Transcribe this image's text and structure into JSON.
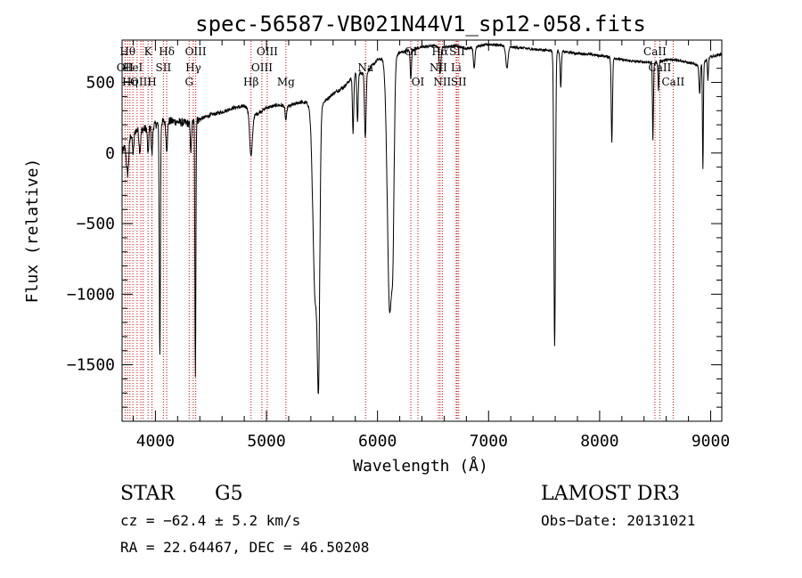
{
  "chart_data": {
    "type": "line",
    "title": "spec-56587-VB021N44V1_sp12-058.fits",
    "xlabel": "Wavelength (Å)",
    "ylabel": "Flux (relative)",
    "xlim": [
      3700,
      9100
    ],
    "ylim": [
      -1900,
      800
    ],
    "xticks": [
      4000,
      5000,
      6000,
      7000,
      8000,
      9000
    ],
    "yticks": [
      -1500,
      -1000,
      -500,
      0,
      500
    ],
    "grid": false,
    "line_color": "#000000",
    "marker_color": "#cc0000",
    "spectrum": {
      "continuum": [
        [
          3700,
          0
        ],
        [
          3760,
          120
        ],
        [
          3820,
          160
        ],
        [
          3900,
          170
        ],
        [
          4000,
          200
        ],
        [
          4100,
          230
        ],
        [
          4200,
          220
        ],
        [
          4300,
          210
        ],
        [
          4400,
          240
        ],
        [
          4500,
          270
        ],
        [
          4600,
          290
        ],
        [
          4700,
          320
        ],
        [
          4800,
          330
        ],
        [
          4850,
          320
        ],
        [
          4900,
          270
        ],
        [
          5000,
          320
        ],
        [
          5100,
          340
        ],
        [
          5200,
          330
        ],
        [
          5300,
          360
        ],
        [
          5400,
          350
        ],
        [
          5500,
          350
        ],
        [
          5600,
          420
        ],
        [
          5700,
          470
        ],
        [
          5800,
          560
        ],
        [
          5900,
          570
        ],
        [
          6000,
          660
        ],
        [
          6100,
          680
        ],
        [
          6200,
          710
        ],
        [
          6300,
          730
        ],
        [
          6400,
          750
        ],
        [
          6500,
          760
        ],
        [
          6600,
          750
        ],
        [
          6700,
          760
        ],
        [
          6800,
          740
        ],
        [
          6900,
          755
        ],
        [
          7000,
          770
        ],
        [
          7100,
          765
        ],
        [
          7200,
          750
        ],
        [
          7300,
          745
        ],
        [
          7400,
          735
        ],
        [
          7500,
          730
        ],
        [
          7600,
          725
        ],
        [
          7700,
          715
        ],
        [
          7800,
          705
        ],
        [
          7900,
          700
        ],
        [
          8000,
          690
        ],
        [
          8100,
          680
        ],
        [
          8200,
          660
        ],
        [
          8300,
          650
        ],
        [
          8400,
          645
        ],
        [
          8500,
          640
        ],
        [
          8600,
          660
        ],
        [
          8700,
          660
        ],
        [
          8800,
          640
        ],
        [
          8900,
          620
        ],
        [
          9000,
          680
        ],
        [
          9100,
          700
        ]
      ],
      "absorptions": [
        {
          "center": 3750,
          "width": 15,
          "depth": 250
        },
        {
          "center": 3800,
          "width": 10,
          "depth": 150
        },
        {
          "center": 3860,
          "width": 10,
          "depth": 150
        },
        {
          "center": 3934,
          "width": 8,
          "depth": 200
        },
        {
          "center": 3969,
          "width": 8,
          "depth": 200
        },
        {
          "center": 4040,
          "width": 7,
          "depth": 1650
        },
        {
          "center": 4102,
          "width": 10,
          "depth": 200
        },
        {
          "center": 4320,
          "width": 8,
          "depth": 200
        },
        {
          "center": 4360,
          "width": 6,
          "depth": 1800
        },
        {
          "center": 4861,
          "width": 18,
          "depth": 330
        },
        {
          "center": 5175,
          "width": 10,
          "depth": 100
        },
        {
          "center": 5440,
          "width": 30,
          "depth": 1400
        },
        {
          "center": 5470,
          "width": 15,
          "depth": 1500
        },
        {
          "center": 5780,
          "width": 8,
          "depth": 400
        },
        {
          "center": 5820,
          "width": 8,
          "depth": 350
        },
        {
          "center": 5890,
          "width": 10,
          "depth": 450
        },
        {
          "center": 6110,
          "width": 30,
          "depth": 1800
        },
        {
          "center": 6140,
          "width": 15,
          "depth": 800
        },
        {
          "center": 6300,
          "width": 8,
          "depth": 200
        },
        {
          "center": 6563,
          "width": 10,
          "depth": 200
        },
        {
          "center": 6870,
          "width": 10,
          "depth": 150
        },
        {
          "center": 7165,
          "width": 15,
          "depth": 150
        },
        {
          "center": 7595,
          "width": 10,
          "depth": 2100
        },
        {
          "center": 7650,
          "width": 8,
          "depth": 250
        },
        {
          "center": 8110,
          "width": 8,
          "depth": 600
        },
        {
          "center": 8480,
          "width": 6,
          "depth": 550
        },
        {
          "center": 8530,
          "width": 6,
          "depth": 200
        },
        {
          "center": 8900,
          "width": 8,
          "depth": 200
        },
        {
          "center": 8930,
          "width": 6,
          "depth": 750
        },
        {
          "center": 8975,
          "width": 6,
          "depth": 150
        }
      ]
    },
    "line_markers": [
      {
        "wl": 3727,
        "label": "OII",
        "row": 1
      },
      {
        "wl": 3750,
        "label": "Hθ",
        "row": 0
      },
      {
        "wl": 3771,
        "label": "Hη",
        "row": 2
      },
      {
        "wl": 3797,
        "label": "HeI",
        "row": 1
      },
      {
        "wl": 3835,
        "label": "",
        "row": 2
      },
      {
        "wl": 3869,
        "label": "OIII",
        "row": 2
      },
      {
        "wl": 3889,
        "label": "",
        "row": 1
      },
      {
        "wl": 3934,
        "label": "K",
        "row": 0
      },
      {
        "wl": 3969,
        "label": "H",
        "row": 2
      },
      {
        "wl": 4072,
        "label": "SII",
        "row": 1
      },
      {
        "wl": 4102,
        "label": "Hδ",
        "row": 0
      },
      {
        "wl": 4304,
        "label": "G",
        "row": 2
      },
      {
        "wl": 4341,
        "label": "Hγ",
        "row": 1
      },
      {
        "wl": 4363,
        "label": "OIII",
        "row": 0
      },
      {
        "wl": 4861,
        "label": "Hβ",
        "row": 2
      },
      {
        "wl": 4959,
        "label": "OIII",
        "row": 1
      },
      {
        "wl": 5007,
        "label": "OIII",
        "row": 0
      },
      {
        "wl": 5175,
        "label": "Mg",
        "row": 2
      },
      {
        "wl": 5892,
        "label": "Na",
        "row": 1
      },
      {
        "wl": 6300,
        "label": "OI",
        "row": 0
      },
      {
        "wl": 6364,
        "label": "OI",
        "row": 2
      },
      {
        "wl": 6548,
        "label": "NII",
        "row": 1
      },
      {
        "wl": 6563,
        "label": "Hα",
        "row": 0
      },
      {
        "wl": 6583,
        "label": "NII",
        "row": 2
      },
      {
        "wl": 6708,
        "label": "Li",
        "row": 1
      },
      {
        "wl": 6717,
        "label": "SII",
        "row": 0
      },
      {
        "wl": 6731,
        "label": "SII",
        "row": 2
      },
      {
        "wl": 8498,
        "label": "CaII",
        "row": 0
      },
      {
        "wl": 8542,
        "label": "CaII",
        "row": 1
      },
      {
        "wl": 8662,
        "label": "CaII",
        "row": 2
      }
    ]
  },
  "info": {
    "class": "STAR",
    "subclass": "G5",
    "survey": "LAMOST DR3",
    "cz": "cz = −62.4 ± 5.2 km/s",
    "obs_date": "Obs−Date: 20131021",
    "radec": "RA =  22.64467, DEC =  46.50208"
  }
}
